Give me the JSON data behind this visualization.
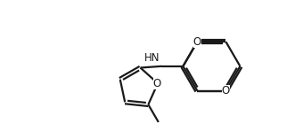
{
  "bg_color": "#ffffff",
  "line_color": "#1a1a1a",
  "lw": 1.6,
  "font_size": 8.5,
  "figsize": [
    3.4,
    1.48
  ],
  "dpi": 100,
  "xlim": [
    0,
    10
  ],
  "ylim": [
    0,
    4.35
  ]
}
